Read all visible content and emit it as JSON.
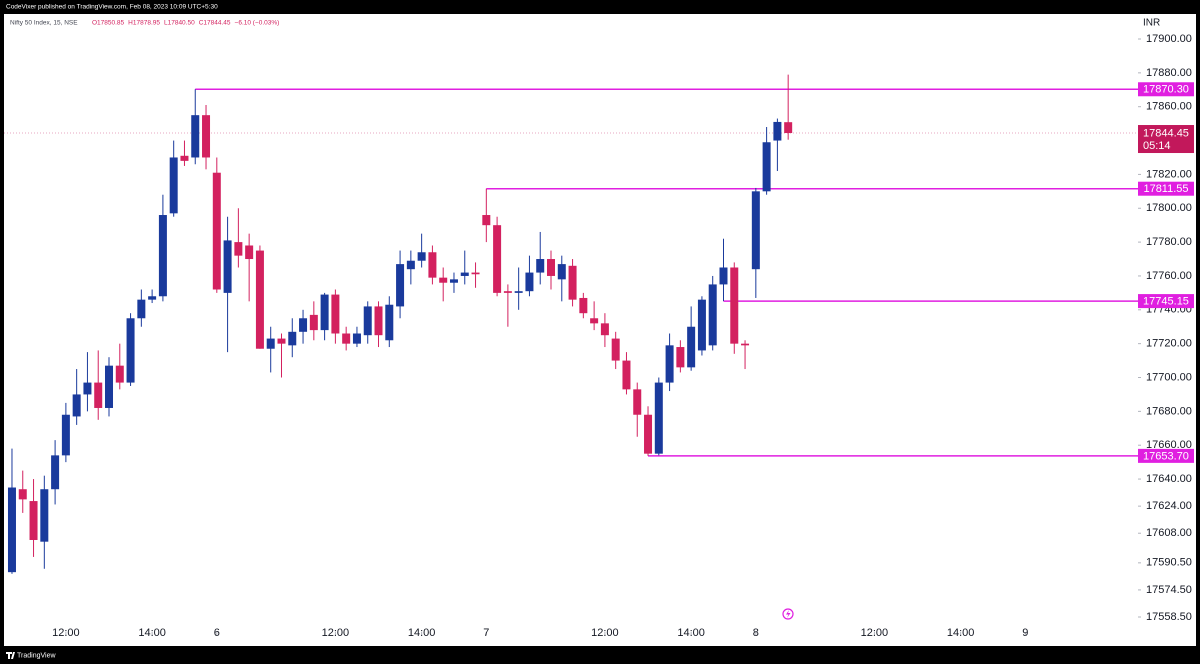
{
  "chart_data": {
    "type": "candlestick",
    "published": "CodeVixer published on TradingView.com, Feb 08, 2023 10:09 UTC+5:30",
    "title": "Nifty 50 Index, 15, NSE",
    "ohlc_header": [
      "O17850.85",
      "H17878.95",
      "L17840.50",
      "C17844.45",
      "−6.10 (−0.03%)"
    ],
    "currency": "INR",
    "footer": "TradingView",
    "up_color": "#1a3a9c",
    "down_color": "#d3215f",
    "level_color": "#e01fe0",
    "ylim": [
      17549.64,
      17914.77
    ],
    "yticks": [
      {
        "value": 17900,
        "label": "17900.00"
      },
      {
        "value": 17880,
        "label": "17880.00"
      },
      {
        "value": 17860,
        "label": "17860.00"
      },
      {
        "value": 17820,
        "label": "17820.00"
      },
      {
        "value": 17800,
        "label": "17800.00"
      },
      {
        "value": 17780,
        "label": "17780.00"
      },
      {
        "value": 17760,
        "label": "17760.00"
      },
      {
        "value": 17740,
        "label": "17740.00"
      },
      {
        "value": 17720,
        "label": "17720.00"
      },
      {
        "value": 17700,
        "label": "17700.00"
      },
      {
        "value": 17680,
        "label": "17680.00"
      },
      {
        "value": 17660,
        "label": "17660.00"
      },
      {
        "value": 17640,
        "label": "17640.00"
      },
      {
        "value": 17624,
        "label": "17624.00"
      },
      {
        "value": 17608,
        "label": "17608.00"
      },
      {
        "value": 17590.5,
        "label": "17590.50"
      },
      {
        "value": 17574.5,
        "label": "17574.50"
      },
      {
        "value": 17558.5,
        "label": "17558.50"
      }
    ],
    "xlim": [
      -0.74,
      104.45
    ],
    "xticks": [
      {
        "value": 5,
        "label": "12:00"
      },
      {
        "value": 13,
        "label": "14:00"
      },
      {
        "value": 19,
        "label": "6"
      },
      {
        "value": 30,
        "label": "12:00"
      },
      {
        "value": 38,
        "label": "14:00"
      },
      {
        "value": 44,
        "label": "7"
      },
      {
        "value": 55,
        "label": "12:00"
      },
      {
        "value": 63,
        "label": "14:00"
      },
      {
        "value": 69,
        "label": "8"
      },
      {
        "value": 80,
        "label": "12:00"
      },
      {
        "value": 88,
        "label": "14:00"
      },
      {
        "value": 94,
        "label": "9"
      }
    ],
    "open": [
      17585,
      17634,
      17627,
      17603,
      17634,
      17654,
      17677,
      17690,
      17697,
      17682,
      17707,
      17697,
      17735,
      17746,
      17748,
      17797,
      17831,
      17830,
      17855,
      17821,
      17750,
      17780,
      17778,
      17775,
      17717,
      17723,
      17719,
      17727,
      17737,
      17728,
      17749,
      17726,
      17720,
      17725,
      17742,
      17722,
      17742,
      17764,
      17769,
      17774,
      17759,
      17756,
      17760,
      17762,
      17796,
      17790,
      17751,
      17750,
      17751,
      17762,
      17770,
      17758,
      17766,
      17747,
      17735,
      17732,
      17723,
      17710,
      17693,
      17678,
      17655,
      17697,
      17718,
      17706,
      17716,
      17719,
      17755,
      17765,
      17720,
      17764,
      17810,
      17840,
      17850.85
    ],
    "high": [
      17658,
      17645,
      17640,
      17642,
      17663,
      17685,
      17705,
      17715,
      17716,
      17712,
      17720,
      17738,
      17752,
      17752,
      17808,
      17840,
      17840,
      17870.3,
      17861,
      17830,
      17795,
      17800,
      17785,
      17778,
      17730,
      17726,
      17735,
      17740,
      17745,
      17750,
      17752,
      17730,
      17730,
      17745,
      17745,
      17748,
      17775,
      17775,
      17785,
      17778,
      17765,
      17762,
      17775,
      17768,
      17811.55,
      17795,
      17755,
      17765,
      17772,
      17786,
      17775,
      17772,
      17770,
      17750,
      17745,
      17738,
      17727,
      17715,
      17697,
      17683,
      17700,
      17726,
      17722,
      17742,
      17748,
      17760,
      17782,
      17768,
      17722,
      17812,
      17848,
      17853,
      17878.95
    ],
    "low": [
      17584,
      17620,
      17594,
      17587,
      17625,
      17650,
      17672,
      17680,
      17675,
      17677,
      17693,
      17695,
      17730,
      17744,
      17745,
      17795,
      17825,
      17826,
      17823,
      17750,
      17715,
      17765,
      17745,
      17717,
      17703,
      17700,
      17712,
      17720,
      17722,
      17722,
      17720,
      17716,
      17718,
      17720,
      17718,
      17718,
      17735,
      17755,
      17765,
      17755,
      17745,
      17750,
      17755,
      17753,
      17780,
      17748,
      17730,
      17740,
      17748,
      17755,
      17752,
      17745,
      17742,
      17735,
      17728,
      17718,
      17705,
      17690,
      17665,
      17653.7,
      17654,
      17692,
      17703,
      17704,
      17713,
      17716,
      17745.15,
      17714,
      17705,
      17747,
      17808,
      17822,
      17840.5
    ],
    "close": [
      17635,
      17628,
      17604,
      17634,
      17654,
      17678,
      17690,
      17697,
      17682,
      17707,
      17697,
      17735,
      17746,
      17748,
      17796,
      17830,
      17828,
      17855,
      17830,
      17752,
      17781,
      17772,
      17770,
      17717,
      17723,
      17720,
      17727,
      17735,
      17728,
      17749,
      17726,
      17720,
      17726,
      17742,
      17725,
      17743,
      17767,
      17769,
      17774,
      17759,
      17756,
      17758,
      17762,
      17761,
      17790,
      17750,
      17750,
      17751,
      17762,
      17770,
      17760,
      17767,
      17746,
      17738,
      17732,
      17725,
      17710,
      17693,
      17678,
      17655,
      17697,
      17719,
      17706,
      17730,
      17746,
      17755,
      17765,
      17720,
      17719,
      17810,
      17839,
      17851,
      17844.45
    ],
    "levels": [
      {
        "value": 17870.3,
        "label": "17870.30"
      },
      {
        "value": 17811.55,
        "label": "17811.55"
      },
      {
        "value": 17745.15,
        "label": "17745.15"
      },
      {
        "value": 17653.7,
        "label": "17653.70"
      }
    ],
    "last": {
      "value": 17844.45,
      "label": "17844.45",
      "countdown": "05:14",
      "color": "#c2185b"
    }
  }
}
